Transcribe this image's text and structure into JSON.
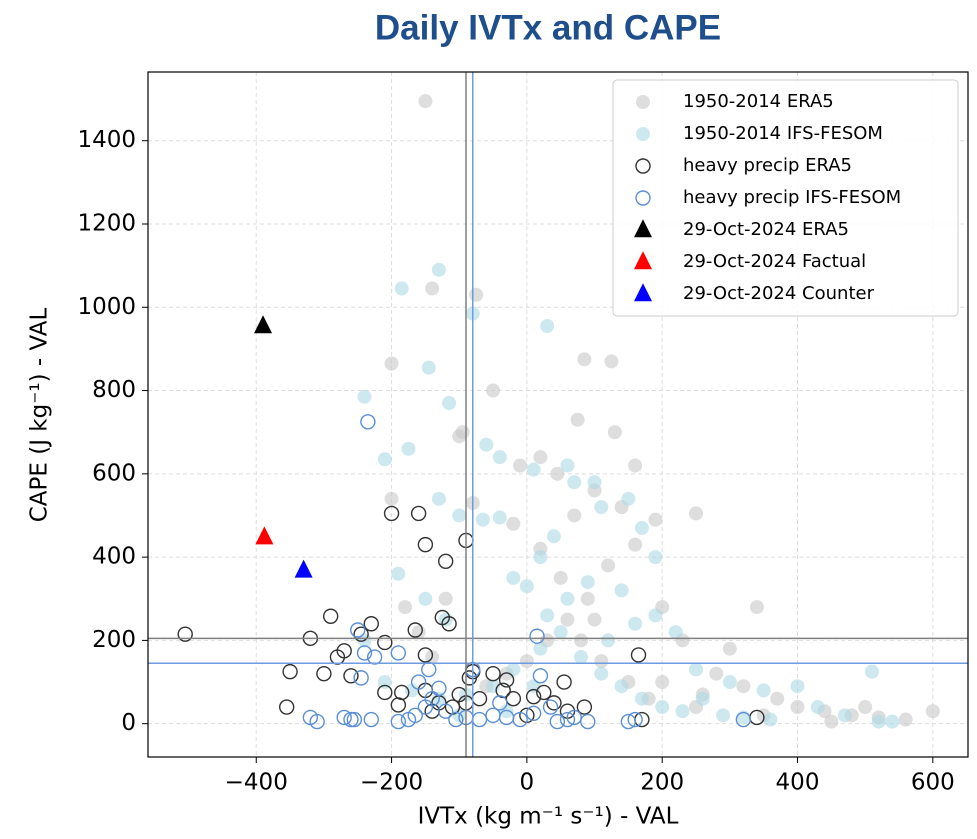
{
  "chart_data": {
    "type": "scatter",
    "title": "Daily IVTx and CAPE",
    "xlabel": "IVTx (kg m⁻¹ s⁻¹) - VAL",
    "ylabel": "CAPE (J kg⁻¹) - VAL",
    "xlim": [
      -560,
      652
    ],
    "ylim": [
      -80,
      1565
    ],
    "xticks": [
      {
        "value": -400,
        "label": "−400"
      },
      {
        "value": -200,
        "label": "−200"
      },
      0,
      200,
      400,
      600
    ],
    "yticks": [
      0,
      200,
      400,
      600,
      800,
      1000,
      1200,
      1400
    ],
    "grid": true,
    "legend": "upper right",
    "hlines": [
      {
        "value": 205,
        "color": "#808080"
      },
      {
        "value": 145,
        "color": "#6f9be0"
      }
    ],
    "vlines": [
      {
        "value": -90,
        "color": "#808080"
      },
      {
        "value": -80,
        "color": "#6f9be0"
      }
    ],
    "series": [
      {
        "name": "1950-2014 ERA5",
        "color": "#c8c8c8",
        "marker": "o",
        "alpha": 0.6,
        "x": [
          -150,
          -140,
          -75,
          -95,
          -50,
          -100,
          -200,
          85,
          125,
          75,
          20,
          -10,
          45,
          100,
          140,
          190,
          250,
          160,
          120,
          90,
          60,
          30,
          0,
          -30,
          -60,
          -120,
          -140,
          -180,
          -160,
          200,
          230,
          300,
          340,
          280,
          320,
          370,
          400,
          440,
          480,
          520,
          560,
          600,
          500,
          260,
          180,
          150,
          110,
          80,
          50,
          20,
          -20,
          -80,
          -200,
          130,
          160,
          70,
          100,
          200,
          250,
          350,
          450
        ],
        "y": [
          1495,
          1045,
          1030,
          700,
          800,
          690,
          865,
          875,
          870,
          730,
          640,
          620,
          600,
          560,
          520,
          490,
          505,
          430,
          380,
          300,
          250,
          200,
          150,
          120,
          90,
          300,
          160,
          280,
          220,
          280,
          200,
          180,
          280,
          120,
          90,
          60,
          40,
          30,
          20,
          15,
          10,
          30,
          40,
          70,
          60,
          100,
          150,
          200,
          350,
          420,
          480,
          530,
          540,
          700,
          620,
          500,
          250,
          100,
          40,
          20,
          5
        ]
      },
      {
        "name": "1950-2014 IFS-FESOM",
        "color": "#add8e6",
        "marker": "o",
        "alpha": 0.6,
        "x": [
          -130,
          -185,
          -80,
          30,
          -240,
          -145,
          -115,
          -175,
          -210,
          -60,
          -40,
          10,
          -130,
          -100,
          -65,
          -40,
          60,
          70,
          100,
          110,
          150,
          170,
          190,
          40,
          20,
          0,
          -20,
          -190,
          -150,
          -120,
          140,
          160,
          190,
          220,
          250,
          300,
          350,
          400,
          430,
          470,
          510,
          520,
          540,
          -240,
          -210,
          -170,
          -130,
          -90,
          -50,
          -20,
          20,
          50,
          80,
          110,
          140,
          170,
          200,
          230,
          260,
          290,
          320,
          360,
          90,
          60,
          30,
          120,
          10,
          -30,
          -100
        ],
        "y": [
          1090,
          1045,
          985,
          955,
          785,
          855,
          770,
          660,
          635,
          670,
          640,
          610,
          540,
          500,
          490,
          495,
          620,
          580,
          580,
          520,
          540,
          470,
          400,
          450,
          400,
          330,
          350,
          360,
          300,
          250,
          320,
          240,
          260,
          220,
          130,
          100,
          80,
          90,
          40,
          20,
          125,
          5,
          5,
          200,
          100,
          80,
          60,
          70,
          90,
          130,
          180,
          220,
          160,
          120,
          90,
          60,
          40,
          30,
          60,
          20,
          15,
          10,
          340,
          300,
          260,
          200,
          90,
          30,
          20
        ]
      },
      {
        "name": "heavy precip ERA5",
        "color": "#333333",
        "marker": "o-open",
        "x": [
          -505,
          -320,
          -290,
          -270,
          -280,
          -260,
          -300,
          -350,
          -355,
          -210,
          -230,
          -200,
          -160,
          -150,
          -120,
          -90,
          -125,
          -115,
          -150,
          -165,
          -210,
          -185,
          -150,
          -130,
          -190,
          -140,
          -110,
          -100,
          -85,
          -80,
          -90,
          -70,
          -35,
          -30,
          -20,
          10,
          25,
          40,
          55,
          60,
          85,
          165,
          170,
          340,
          -50,
          -245,
          0
        ],
        "y": [
          215,
          205,
          258,
          175,
          160,
          115,
          120,
          125,
          40,
          195,
          240,
          505,
          505,
          430,
          390,
          440,
          255,
          240,
          165,
          225,
          75,
          75,
          80,
          50,
          45,
          30,
          40,
          70,
          110,
          125,
          50,
          60,
          80,
          105,
          60,
          65,
          75,
          50,
          100,
          30,
          40,
          165,
          10,
          15,
          120,
          215,
          20
        ]
      },
      {
        "name": "heavy precip IFS-FESOM",
        "color": "#5a8fd6",
        "marker": "o-open",
        "x": [
          -235,
          -250,
          -240,
          -225,
          -245,
          -320,
          -310,
          -270,
          -255,
          -230,
          -190,
          -175,
          -165,
          -150,
          -140,
          -130,
          -120,
          -105,
          -90,
          -70,
          -50,
          -30,
          -10,
          10,
          15,
          20,
          35,
          45,
          60,
          70,
          90,
          150,
          160,
          320,
          -145,
          -80,
          -40,
          -160,
          -190,
          -260
        ],
        "y": [
          725,
          225,
          170,
          160,
          110,
          15,
          5,
          15,
          10,
          10,
          5,
          10,
          20,
          40,
          60,
          85,
          30,
          10,
          15,
          10,
          20,
          15,
          10,
          25,
          210,
          115,
          40,
          5,
          10,
          15,
          5,
          5,
          10,
          10,
          130,
          130,
          50,
          100,
          170,
          10
        ]
      },
      {
        "name": "29-Oct-2024 ERA5",
        "color": "#000000",
        "marker": "^",
        "x": [
          -390
        ],
        "y": [
          955
        ]
      },
      {
        "name": "29-Oct-2024 Factual",
        "color": "#ff0000",
        "marker": "^",
        "x": [
          -388
        ],
        "y": [
          448
        ]
      },
      {
        "name": "29-Oct-2024 Counter",
        "color": "#0000ff",
        "marker": "^",
        "x": [
          -330
        ],
        "y": [
          368
        ]
      }
    ]
  }
}
